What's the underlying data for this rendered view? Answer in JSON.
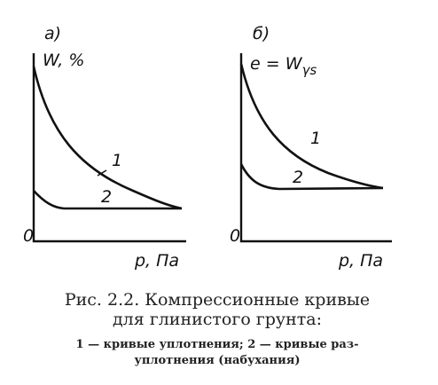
{
  "panels": [
    {
      "label": "а)",
      "y_axis_label": {
        "base": "W, %"
      },
      "origin": "0",
      "x_axis_label": "p, Па",
      "curve_labels": [
        "1",
        "2"
      ]
    },
    {
      "label": "б)",
      "y_axis_label": {
        "base": "e = W",
        "subscript": "γs"
      },
      "origin": "0",
      "x_axis_label": "p, Па",
      "curve_labels": [
        "1",
        "2"
      ]
    }
  ],
  "caption": {
    "title_lines": [
      "Рис. 2.2. Компрессионные кривые",
      "для глинистого грунта:"
    ],
    "legend_lines": [
      "1 — кривые уплотнения; 2 — кривые раз-",
      "уплотнения (набухания)"
    ]
  }
}
